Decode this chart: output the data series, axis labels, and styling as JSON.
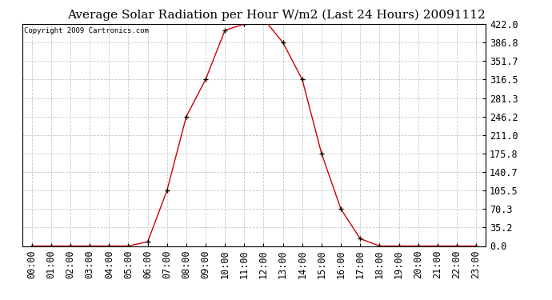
{
  "title": "Average Solar Radiation per Hour W/m2 (Last 24 Hours) 20091112",
  "copyright": "Copyright 2009 Cartronics.com",
  "hours": [
    "00:00",
    "01:00",
    "02:00",
    "03:00",
    "04:00",
    "05:00",
    "06:00",
    "07:00",
    "08:00",
    "09:00",
    "10:00",
    "11:00",
    "12:00",
    "13:00",
    "14:00",
    "15:00",
    "16:00",
    "17:00",
    "18:00",
    "19:00",
    "20:00",
    "21:00",
    "22:00",
    "23:00"
  ],
  "values": [
    0.0,
    0.0,
    0.0,
    0.0,
    0.0,
    0.0,
    8.0,
    105.5,
    246.2,
    316.5,
    410.0,
    422.0,
    432.0,
    386.8,
    316.5,
    175.8,
    70.3,
    14.0,
    0.0,
    0.0,
    0.0,
    0.0,
    0.0,
    0.0
  ],
  "yticks": [
    0.0,
    35.2,
    70.3,
    105.5,
    140.7,
    175.8,
    211.0,
    246.2,
    281.3,
    316.5,
    351.7,
    386.8,
    422.0
  ],
  "ymax": 422.0,
  "ymin": 0.0,
  "line_color": "#cc0000",
  "marker_color": "#000000",
  "bg_color": "#ffffff",
  "plot_bg_color": "#ffffff",
  "grid_color": "#c8c8c8",
  "title_fontsize": 11,
  "copyright_fontsize": 6.5,
  "tick_fontsize": 8.5
}
